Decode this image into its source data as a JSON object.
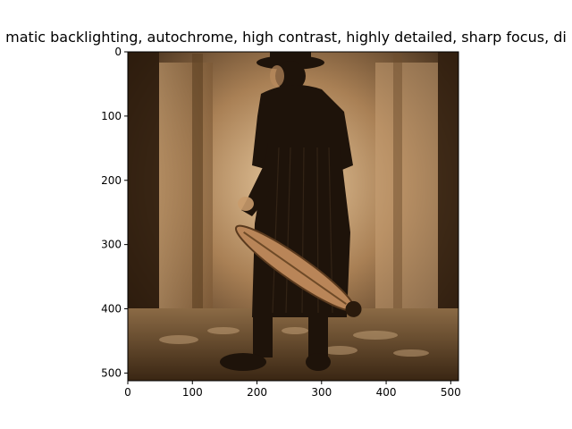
{
  "chart_data": {
    "type": "image",
    "title": "matic backlighting, autochrome, high contrast, highly detailed, sharp focus, di",
    "image": "sepia-photo-person-holding-instrument",
    "x_ticks": [
      0,
      100,
      200,
      300,
      400,
      500
    ],
    "y_ticks": [
      0,
      100,
      200,
      300,
      400,
      500
    ],
    "xlim": [
      0,
      512
    ],
    "ylim": [
      512,
      0
    ],
    "colors": {
      "dark": "#1e130a",
      "mid": "#7a5531",
      "light": "#e6c79e",
      "floor": "#9c7a55"
    }
  }
}
